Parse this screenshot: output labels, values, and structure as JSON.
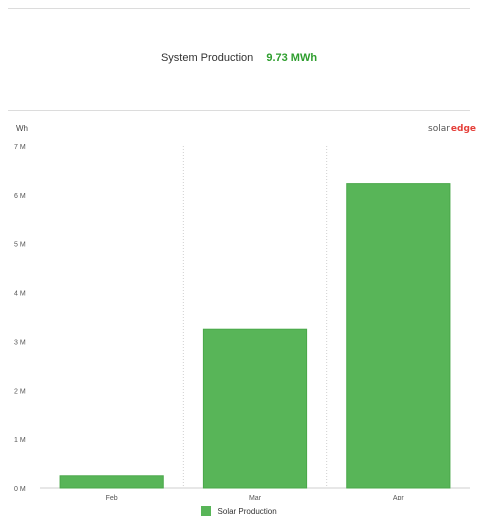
{
  "summary": {
    "label": "System Production",
    "value": "9.73 MWh"
  },
  "chart_unit": "Wh",
  "logo": {
    "text": "solar",
    "mark": "edge"
  },
  "colors": {
    "bar": "#58b558",
    "bar_edge": "#4aa84a",
    "value_green": "#2e9e2e",
    "grid": "#d8d8d8"
  },
  "chart_data": {
    "type": "bar",
    "categories": [
      "Feb",
      "Mar",
      "Apr"
    ],
    "series": [
      {
        "name": "Solar Production",
        "values": [
          250000,
          3250000,
          6230000
        ]
      }
    ],
    "ylabel": "Wh",
    "ylim": [
      0,
      7000000
    ],
    "yticks": [
      0,
      1000000,
      2000000,
      3000000,
      4000000,
      5000000,
      6000000,
      7000000
    ],
    "ytick_labels": [
      "0 M",
      "1 M",
      "2 M",
      "3 M",
      "4 M",
      "5 M",
      "6 M",
      "7 M"
    ],
    "grid": "vertical dotted separators",
    "legend": "bottom-center"
  }
}
